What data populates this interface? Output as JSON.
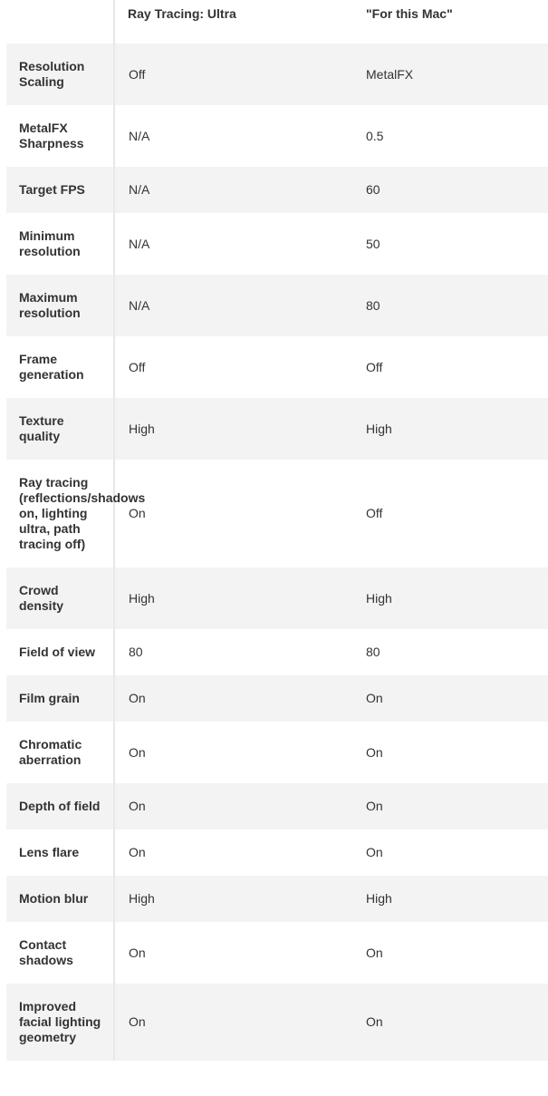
{
  "header": {
    "col1": "",
    "col2": "Ray Tracing: Ultra",
    "col3": "\"For this Mac\""
  },
  "rows": [
    {
      "setting": "Resolution Scaling",
      "ultra": "Off",
      "mac": "MetalFX"
    },
    {
      "setting": "MetalFX Sharpness",
      "ultra": "N/A",
      "mac": "0.5"
    },
    {
      "setting": "Target FPS",
      "ultra": "N/A",
      "mac": "60"
    },
    {
      "setting": "Minimum resolution",
      "ultra": "N/A",
      "mac": "50"
    },
    {
      "setting": "Maximum resolution",
      "ultra": "N/A",
      "mac": "80"
    },
    {
      "setting": "Frame generation",
      "ultra": "Off",
      "mac": "Off"
    },
    {
      "setting": "Texture quality",
      "ultra": "High",
      "mac": "High"
    },
    {
      "setting": "Ray tracing (reflections/shadows on, lighting ultra, path tracing off)",
      "ultra": "On",
      "mac": "Off"
    },
    {
      "setting": "Crowd density",
      "ultra": "High",
      "mac": "High"
    },
    {
      "setting": "Field of view",
      "ultra": "80",
      "mac": "80"
    },
    {
      "setting": "Film grain",
      "ultra": "On",
      "mac": "On"
    },
    {
      "setting": "Chromatic aberration",
      "ultra": "On",
      "mac": "On"
    },
    {
      "setting": "Depth of field",
      "ultra": "On",
      "mac": "On"
    },
    {
      "setting": "Lens flare",
      "ultra": "On",
      "mac": "On"
    },
    {
      "setting": "Motion blur",
      "ultra": "High",
      "mac": "High"
    },
    {
      "setting": "Contact shadows",
      "ultra": "On",
      "mac": "On"
    },
    {
      "setting": "Improved facial lighting geometry",
      "ultra": "On",
      "mac": "On"
    }
  ],
  "colors": {
    "row_alt": "#f3f3f3",
    "text": "#333333",
    "divider": "#e8e8e8"
  }
}
